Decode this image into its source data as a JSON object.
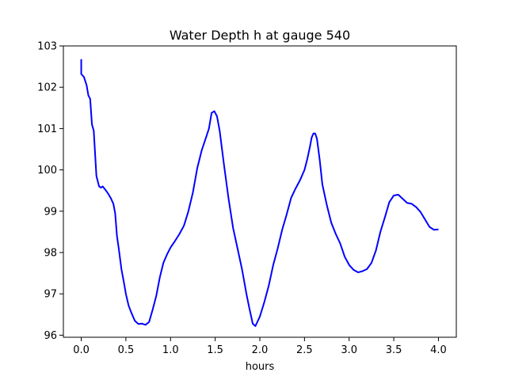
{
  "chart_data": {
    "type": "line",
    "title": "Water Depth h at gauge 540",
    "xlabel": "hours",
    "ylabel": "",
    "xlim": [
      -0.2,
      4.2
    ],
    "ylim": [
      95.95,
      103.0
    ],
    "xticks": [
      0.0,
      0.5,
      1.0,
      1.5,
      2.0,
      2.5,
      3.0,
      3.5,
      4.0
    ],
    "xtick_labels": [
      "0.0",
      "0.5",
      "1.0",
      "1.5",
      "2.0",
      "2.5",
      "3.0",
      "3.5",
      "4.0"
    ],
    "yticks": [
      96,
      97,
      98,
      99,
      100,
      101,
      102,
      103
    ],
    "ytick_labels": [
      "96",
      "97",
      "98",
      "99",
      "100",
      "101",
      "102",
      "103"
    ],
    "grid": false,
    "legend": "none",
    "series": [
      {
        "color": "#0000ff",
        "x": [
          0.0,
          0.0,
          0.03,
          0.06,
          0.08,
          0.1,
          0.12,
          0.14,
          0.17,
          0.2,
          0.22,
          0.24,
          0.27,
          0.3,
          0.33,
          0.36,
          0.38,
          0.4,
          0.42,
          0.45,
          0.48,
          0.5,
          0.53,
          0.56,
          0.6,
          0.64,
          0.68,
          0.72,
          0.76,
          0.8,
          0.84,
          0.88,
          0.92,
          0.96,
          1.0,
          1.05,
          1.1,
          1.15,
          1.2,
          1.25,
          1.3,
          1.35,
          1.4,
          1.43,
          1.46,
          1.49,
          1.52,
          1.55,
          1.6,
          1.65,
          1.7,
          1.75,
          1.8,
          1.85,
          1.88,
          1.9,
          1.92,
          1.95,
          2.0,
          2.05,
          2.1,
          2.15,
          2.2,
          2.25,
          2.3,
          2.35,
          2.4,
          2.45,
          2.5,
          2.53,
          2.56,
          2.58,
          2.6,
          2.62,
          2.64,
          2.67,
          2.7,
          2.75,
          2.8,
          2.85,
          2.9,
          2.95,
          3.0,
          3.05,
          3.1,
          3.15,
          3.2,
          3.25,
          3.3,
          3.35,
          3.4,
          3.45,
          3.5,
          3.55,
          3.6,
          3.65,
          3.7,
          3.75,
          3.8,
          3.85,
          3.9,
          3.95,
          4.0
        ],
        "y": [
          102.68,
          102.32,
          102.25,
          102.05,
          101.8,
          101.72,
          101.1,
          100.95,
          99.85,
          99.6,
          99.57,
          99.6,
          99.52,
          99.43,
          99.32,
          99.18,
          98.95,
          98.4,
          98.1,
          97.6,
          97.25,
          97.0,
          96.72,
          96.55,
          96.35,
          96.27,
          96.28,
          96.25,
          96.32,
          96.62,
          96.95,
          97.4,
          97.75,
          97.95,
          98.12,
          98.28,
          98.45,
          98.65,
          99.0,
          99.45,
          100.05,
          100.48,
          100.8,
          101.0,
          101.38,
          101.42,
          101.3,
          100.95,
          100.1,
          99.3,
          98.6,
          98.1,
          97.6,
          97.0,
          96.68,
          96.48,
          96.28,
          96.22,
          96.45,
          96.8,
          97.2,
          97.7,
          98.1,
          98.55,
          98.92,
          99.32,
          99.55,
          99.75,
          100.0,
          100.25,
          100.55,
          100.78,
          100.88,
          100.88,
          100.75,
          100.25,
          99.65,
          99.15,
          98.72,
          98.45,
          98.22,
          97.9,
          97.7,
          97.58,
          97.52,
          97.55,
          97.6,
          97.75,
          98.05,
          98.5,
          98.85,
          99.22,
          99.38,
          99.4,
          99.3,
          99.2,
          99.18,
          99.1,
          98.98,
          98.8,
          98.62,
          98.55,
          98.56
        ]
      }
    ]
  }
}
